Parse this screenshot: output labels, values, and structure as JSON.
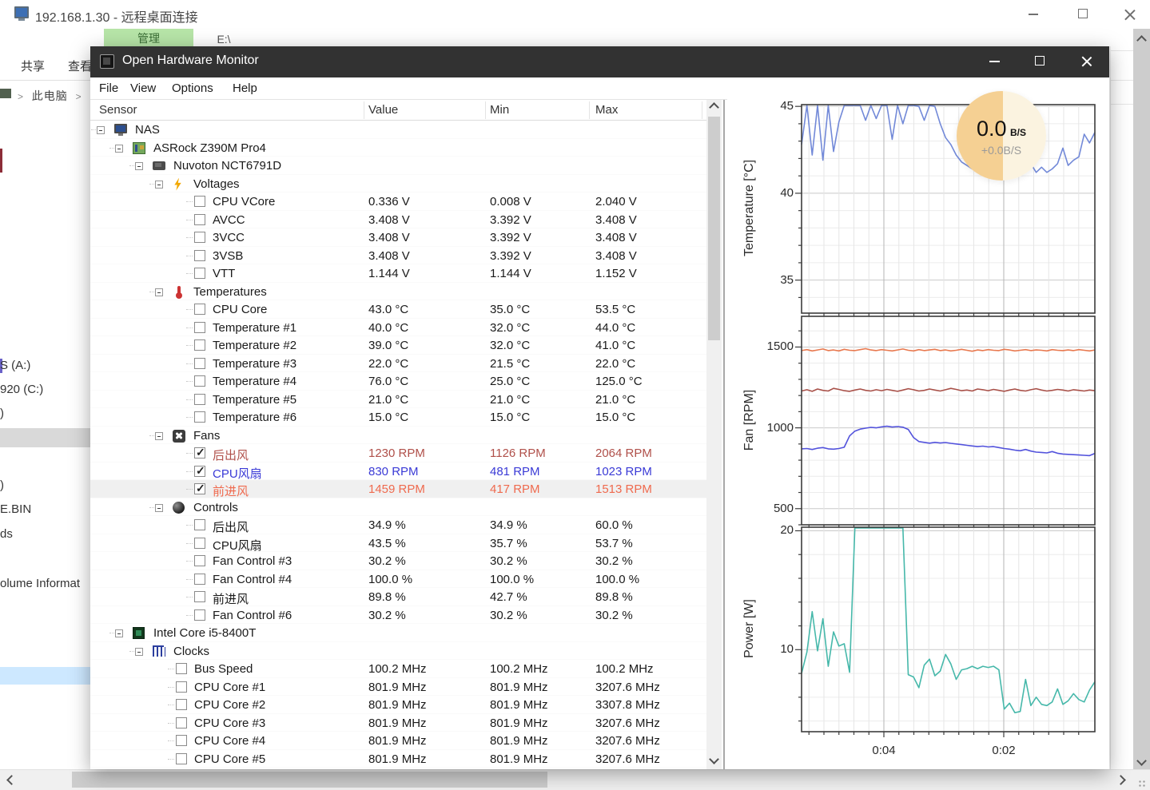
{
  "rdp": {
    "title": "192.168.1.30 - 远程桌面连接"
  },
  "explorer": {
    "manage_tab": "管理",
    "drive_tab": "E:\\",
    "ribbon_tabs": [
      "共享",
      "查看"
    ],
    "breadcrumb": "此电脑",
    "left_items": [
      "S (A:)",
      "920 (C:)",
      ")",
      ")",
      "E.BIN",
      "ds",
      "olume Informat"
    ]
  },
  "ohm": {
    "title": "Open Hardware Monitor",
    "menus": [
      "File",
      "View",
      "Options",
      "Help"
    ],
    "columns": [
      "Sensor",
      "Value",
      "Min",
      "Max"
    ],
    "rows": [
      {
        "kind": "node",
        "level": 0,
        "icon": "computer",
        "label": "NAS"
      },
      {
        "kind": "node",
        "level": 1,
        "icon": "motherboard",
        "label": "ASRock Z390M Pro4"
      },
      {
        "kind": "node",
        "level": 2,
        "icon": "chip",
        "label": "Nuvoton NCT6791D"
      },
      {
        "kind": "node",
        "level": 3,
        "icon": "voltage",
        "label": "Voltages"
      },
      {
        "kind": "sensor",
        "level": 4,
        "label": "CPU VCore",
        "value": "0.336 V",
        "min": "0.008 V",
        "max": "2.040 V",
        "checked": false
      },
      {
        "kind": "sensor",
        "level": 4,
        "label": "AVCC",
        "value": "3.408 V",
        "min": "3.392 V",
        "max": "3.408 V",
        "checked": false
      },
      {
        "kind": "sensor",
        "level": 4,
        "label": "3VCC",
        "value": "3.408 V",
        "min": "3.392 V",
        "max": "3.408 V",
        "checked": false
      },
      {
        "kind": "sensor",
        "level": 4,
        "label": "3VSB",
        "value": "3.408 V",
        "min": "3.392 V",
        "max": "3.408 V",
        "checked": false
      },
      {
        "kind": "sensor",
        "level": 4,
        "label": "VTT",
        "value": "1.144 V",
        "min": "1.144 V",
        "max": "1.152 V",
        "checked": false
      },
      {
        "kind": "node",
        "level": 3,
        "icon": "temp",
        "label": "Temperatures"
      },
      {
        "kind": "sensor",
        "level": 4,
        "label": "CPU Core",
        "value": "43.0 °C",
        "min": "35.0 °C",
        "max": "53.5 °C",
        "checked": false
      },
      {
        "kind": "sensor",
        "level": 4,
        "label": "Temperature #1",
        "value": "40.0 °C",
        "min": "32.0 °C",
        "max": "44.0 °C",
        "checked": false
      },
      {
        "kind": "sensor",
        "level": 4,
        "label": "Temperature #2",
        "value": "39.0 °C",
        "min": "32.0 °C",
        "max": "41.0 °C",
        "checked": false
      },
      {
        "kind": "sensor",
        "level": 4,
        "label": "Temperature #3",
        "value": "22.0 °C",
        "min": "21.5 °C",
        "max": "22.0 °C",
        "checked": false
      },
      {
        "kind": "sensor",
        "level": 4,
        "label": "Temperature #4",
        "value": "76.0 °C",
        "min": "25.0 °C",
        "max": "125.0 °C",
        "checked": false
      },
      {
        "kind": "sensor",
        "level": 4,
        "label": "Temperature #5",
        "value": "21.0 °C",
        "min": "21.0 °C",
        "max": "21.0 °C",
        "checked": false
      },
      {
        "kind": "sensor",
        "level": 4,
        "label": "Temperature #6",
        "value": "15.0 °C",
        "min": "15.0 °C",
        "max": "15.0 °C",
        "checked": false
      },
      {
        "kind": "node",
        "level": 3,
        "icon": "fan",
        "label": "Fans"
      },
      {
        "kind": "sensor",
        "level": 4,
        "label": "后出风",
        "value": "1230 RPM",
        "min": "1126 RPM",
        "max": "2064 RPM",
        "checked": true,
        "color": "#b0504a"
      },
      {
        "kind": "sensor",
        "level": 4,
        "label": "CPU风扇",
        "value": "830 RPM",
        "min": "481 RPM",
        "max": "1023 RPM",
        "checked": true,
        "color": "#3a3ad6"
      },
      {
        "kind": "sensor",
        "level": 4,
        "label": "前进风",
        "value": "1459 RPM",
        "min": "417 RPM",
        "max": "1513 RPM",
        "checked": true,
        "color": "#ef6a4e",
        "selected": true
      },
      {
        "kind": "node",
        "level": 3,
        "icon": "control",
        "label": "Controls"
      },
      {
        "kind": "sensor",
        "level": 4,
        "label": "后出风",
        "value": "34.9 %",
        "min": "34.9 %",
        "max": "60.0 %",
        "checked": false
      },
      {
        "kind": "sensor",
        "level": 4,
        "label": "CPU风扇",
        "value": "43.5 %",
        "min": "35.7 %",
        "max": "53.7 %",
        "checked": false
      },
      {
        "kind": "sensor",
        "level": 4,
        "label": "Fan Control #3",
        "value": "30.2 %",
        "min": "30.2 %",
        "max": "30.2 %",
        "checked": false
      },
      {
        "kind": "sensor",
        "level": 4,
        "label": "Fan Control #4",
        "value": "100.0 %",
        "min": "100.0 %",
        "max": "100.0 %",
        "checked": false
      },
      {
        "kind": "sensor",
        "level": 4,
        "label": "前进风",
        "value": "89.8 %",
        "min": "42.7 %",
        "max": "89.8 %",
        "checked": false
      },
      {
        "kind": "sensor",
        "level": 4,
        "label": "Fan Control #6",
        "value": "30.2 %",
        "min": "30.2 %",
        "max": "30.2 %",
        "checked": false
      },
      {
        "kind": "node",
        "level": 1,
        "icon": "cpu",
        "label": "Intel Core i5-8400T"
      },
      {
        "kind": "node",
        "level": 2,
        "icon": "clock",
        "label": "Clocks"
      },
      {
        "kind": "sensor",
        "level": 3,
        "label": "Bus Speed",
        "value": "100.2 MHz",
        "min": "100.2 MHz",
        "max": "100.2 MHz",
        "checked": false
      },
      {
        "kind": "sensor",
        "level": 3,
        "label": "CPU Core #1",
        "value": "801.9 MHz",
        "min": "801.9 MHz",
        "max": "3207.6 MHz",
        "checked": false
      },
      {
        "kind": "sensor",
        "level": 3,
        "label": "CPU Core #2",
        "value": "801.9 MHz",
        "min": "801.9 MHz",
        "max": "3307.8 MHz",
        "checked": false
      },
      {
        "kind": "sensor",
        "level": 3,
        "label": "CPU Core #3",
        "value": "801.9 MHz",
        "min": "801.9 MHz",
        "max": "3207.6 MHz",
        "checked": false
      },
      {
        "kind": "sensor",
        "level": 3,
        "label": "CPU Core #4",
        "value": "801.9 MHz",
        "min": "801.9 MHz",
        "max": "3207.6 MHz",
        "checked": false
      },
      {
        "kind": "sensor",
        "level": 3,
        "label": "CPU Core #5",
        "value": "801.9 MHz",
        "min": "801.9 MHz",
        "max": "3207.6 MHz",
        "checked": false
      },
      {
        "kind": "sensor",
        "level": 3,
        "label": "CPU Core #6",
        "value": "801.9 MHz",
        "min": "801.9 MHz",
        "max": "3307.8 MHz",
        "checked": false
      }
    ]
  },
  "badge": {
    "value": "0.0",
    "unit": "B/S",
    "delta": "+0.0B/S"
  },
  "chart_data": [
    {
      "type": "line",
      "ylabel": "Temperature [°C]",
      "ylim": [
        33.1,
        45.1
      ],
      "yticks": [
        35,
        40,
        45
      ],
      "grid": true,
      "xticklabels": [
        "0:04",
        "0:02"
      ],
      "series": [
        {
          "name": "CPU Core",
          "color": "#7289d8",
          "values": [
            42.8,
            45.3,
            42.2,
            45.6,
            41.9,
            45.8,
            42.4,
            44.1,
            45.5,
            46,
            46,
            46,
            44.2,
            45.8,
            44.3,
            46,
            46,
            43.1,
            45.2,
            44.0,
            45.6,
            46,
            45.0,
            44.2,
            45.5,
            45.0,
            44.0,
            43.2,
            42.8,
            42.2,
            41.8,
            41.6,
            41.4,
            41.8,
            41.2,
            41.6,
            42.6,
            41.4,
            41.1,
            41.3,
            41.0,
            41.4,
            42.4,
            41.7,
            41.2,
            41.5,
            41.2,
            41.4,
            41.7,
            42.6,
            41.6,
            41.9,
            42.1,
            43.4,
            42.9,
            43.5
          ]
        }
      ]
    },
    {
      "type": "line",
      "ylabel": "Fan [RPM]",
      "ylim": [
        400,
        1690
      ],
      "yticks": [
        500,
        1000,
        1500
      ],
      "grid": true,
      "xticklabels": [
        "0:04",
        "0:02"
      ],
      "series": [
        {
          "name": "前进风",
          "color": "#e8784e",
          "values": [
            1478,
            1484,
            1476,
            1482,
            1488,
            1478,
            1482,
            1476,
            1486,
            1480,
            1478,
            1484,
            1490,
            1482,
            1478,
            1484,
            1480,
            1476,
            1482,
            1488,
            1480,
            1476,
            1484,
            1478,
            1482,
            1486,
            1478,
            1482,
            1476,
            1480,
            1486,
            1480,
            1474,
            1482,
            1478,
            1484,
            1480,
            1478,
            1486,
            1482,
            1476,
            1480,
            1484,
            1478,
            1482,
            1480,
            1476,
            1484,
            1480,
            1478,
            1482,
            1478,
            1484,
            1480,
            1476,
            1482
          ]
        },
        {
          "name": "后出风",
          "color": "#a85048",
          "values": [
            1228,
            1236,
            1226,
            1240,
            1232,
            1228,
            1244,
            1238,
            1230,
            1226,
            1234,
            1240,
            1232,
            1228,
            1236,
            1230,
            1238,
            1232,
            1226,
            1234,
            1242,
            1236,
            1228,
            1232,
            1240,
            1234,
            1228,
            1236,
            1244,
            1238,
            1230,
            1234,
            1228,
            1240,
            1236,
            1230,
            1238,
            1232,
            1226,
            1234,
            1240,
            1232,
            1228,
            1236,
            1242,
            1234,
            1228,
            1232,
            1238,
            1234,
            1228,
            1236,
            1232,
            1228,
            1234,
            1230
          ]
        },
        {
          "name": "CPU风扇",
          "color": "#5252dc",
          "values": [
            870,
            872,
            866,
            874,
            878,
            870,
            868,
            872,
            880,
            950,
            980,
            992,
            998,
            1003,
            1000,
            1006,
            1010,
            1005,
            1008,
            1004,
            990,
            940,
            915,
            910,
            905,
            910,
            906,
            909,
            904,
            900,
            896,
            892,
            888,
            884,
            887,
            882,
            884,
            878,
            872,
            868,
            862,
            858,
            866,
            856,
            850,
            848,
            845,
            853,
            843,
            838,
            836,
            834,
            832,
            830,
            828,
            842
          ]
        }
      ]
    },
    {
      "type": "line",
      "ylabel": "Power [W]",
      "ylim": [
        3.1,
        20.3
      ],
      "yticks": [
        10,
        20
      ],
      "grid": true,
      "xticklabels": [
        "0:04",
        "0:02"
      ],
      "series": [
        {
          "name": "Power",
          "color": "#46b8aa",
          "values": [
            8.0,
            9.8,
            13.2,
            9.9,
            12.6,
            8.6,
            11.5,
            10.3,
            10.5,
            8.1,
            25,
            25,
            25,
            25,
            25,
            25,
            25,
            25,
            25,
            25,
            7.9,
            7.7,
            6.8,
            8.7,
            9.2,
            7.8,
            8.2,
            9.6,
            8.8,
            7.5,
            8.3,
            8.4,
            8.6,
            8.4,
            8.6,
            8.5,
            8.6,
            8.3,
            5.0,
            5.5,
            4.7,
            4.8,
            7.5,
            5.3,
            6.0,
            5.4,
            5.3,
            5.6,
            6.7,
            5.4,
            5.7,
            6.3,
            5.8,
            5.6,
            6.6,
            7.3
          ]
        }
      ]
    }
  ]
}
